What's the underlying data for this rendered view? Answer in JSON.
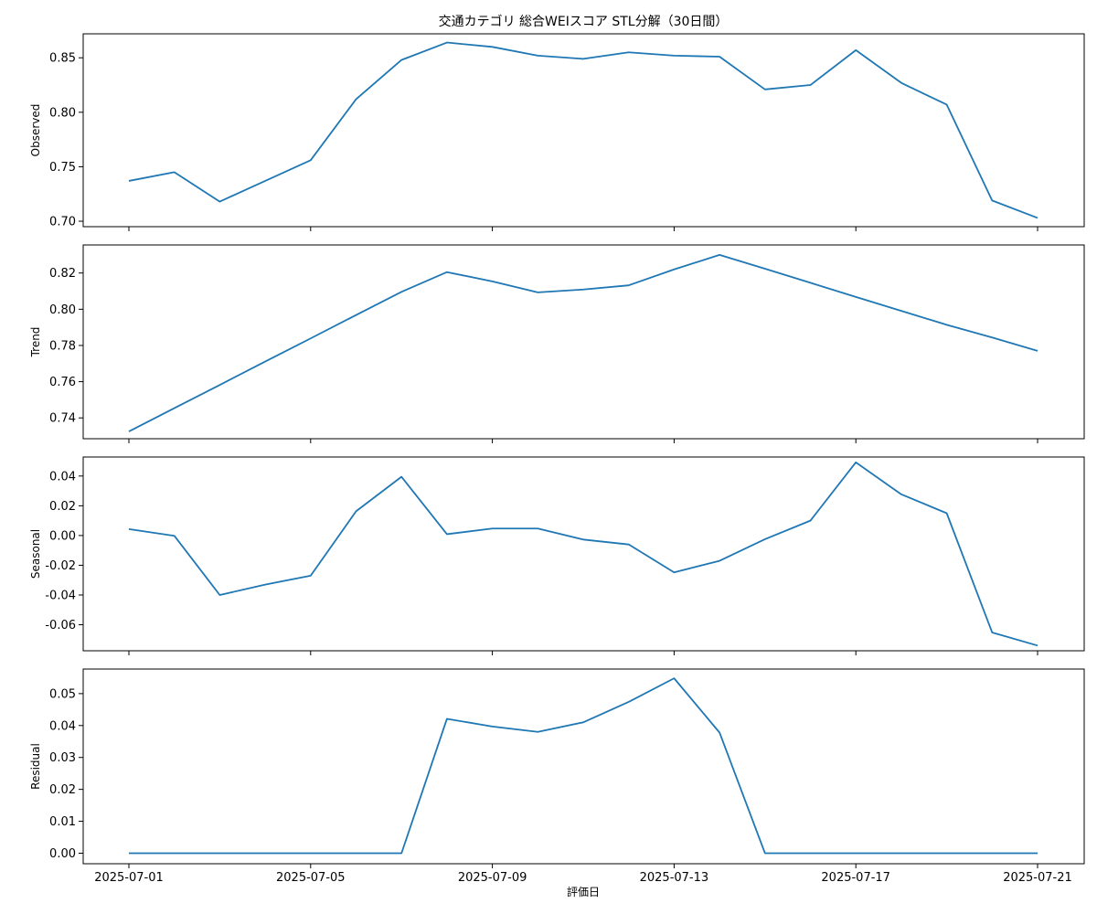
{
  "title": "交通カテゴリ 総合WEIスコア STL分解（30日間）",
  "xlabel": "評価日",
  "x_ticks": [
    "2025-07-01",
    "2025-07-05",
    "2025-07-09",
    "2025-07-13",
    "2025-07-17",
    "2025-07-21"
  ],
  "chart_data": {
    "type": "line",
    "title": "交通カテゴリ 総合WEIスコア STL分解（30日間）",
    "xlabel": "評価日",
    "line_color": "#1f77b4",
    "grid": false,
    "x": [
      "2025-07-01",
      "2025-07-02",
      "2025-07-03",
      "2025-07-04",
      "2025-07-05",
      "2025-07-06",
      "2025-07-07",
      "2025-07-08",
      "2025-07-09",
      "2025-07-10",
      "2025-07-11",
      "2025-07-12",
      "2025-07-13",
      "2025-07-14",
      "2025-07-15",
      "2025-07-16",
      "2025-07-17",
      "2025-07-18",
      "2025-07-19",
      "2025-07-20",
      "2025-07-21"
    ],
    "panels": [
      {
        "name": "Observed",
        "ylabel": "Observed",
        "ylim": [
          0.695,
          0.872
        ],
        "yticks": [
          0.7,
          0.75,
          0.8,
          0.85
        ],
        "tick_format": 2,
        "values": [
          0.737,
          0.745,
          0.718,
          0.737,
          0.756,
          0.812,
          0.848,
          0.864,
          0.86,
          0.852,
          0.849,
          0.855,
          0.852,
          0.851,
          0.821,
          0.825,
          0.857,
          0.827,
          0.807,
          0.719,
          0.703
        ]
      },
      {
        "name": "Trend",
        "ylabel": "Trend",
        "ylim": [
          0.7285,
          0.8355
        ],
        "yticks": [
          0.74,
          0.76,
          0.78,
          0.8,
          0.82
        ],
        "tick_format": 2,
        "values": [
          0.7325,
          0.7454,
          0.7582,
          0.7711,
          0.7839,
          0.7968,
          0.8096,
          0.8205,
          0.8154,
          0.8093,
          0.8109,
          0.8132,
          0.822,
          0.83,
          0.8224,
          0.8146,
          0.8068,
          0.7991,
          0.7914,
          0.7844,
          0.777
        ]
      },
      {
        "name": "Seasonal",
        "ylabel": "Seasonal",
        "ylim": [
          -0.0775,
          0.0528
        ],
        "yticks": [
          -0.06,
          -0.04,
          -0.02,
          0.0,
          0.02,
          0.04
        ],
        "tick_format": 2,
        "values": [
          0.0043,
          -0.0002,
          -0.04,
          -0.033,
          -0.027,
          0.0163,
          0.0395,
          0.0009,
          0.0047,
          0.0047,
          -0.0027,
          -0.006,
          -0.0248,
          -0.017,
          -0.0025,
          0.01,
          0.0492,
          0.0277,
          0.015,
          -0.0652,
          -0.074
        ]
      },
      {
        "name": "Residual",
        "ylabel": "Residual",
        "ylim": [
          -0.0033,
          0.0577
        ],
        "yticks": [
          0.0,
          0.01,
          0.02,
          0.03,
          0.04,
          0.05
        ],
        "tick_format": 2,
        "values": [
          0,
          0,
          0,
          0,
          0,
          0,
          0,
          0.0421,
          0.0397,
          0.038,
          0.041,
          0.0474,
          0.0548,
          0.0378,
          0,
          0,
          0,
          0,
          0,
          0,
          0
        ]
      }
    ]
  }
}
